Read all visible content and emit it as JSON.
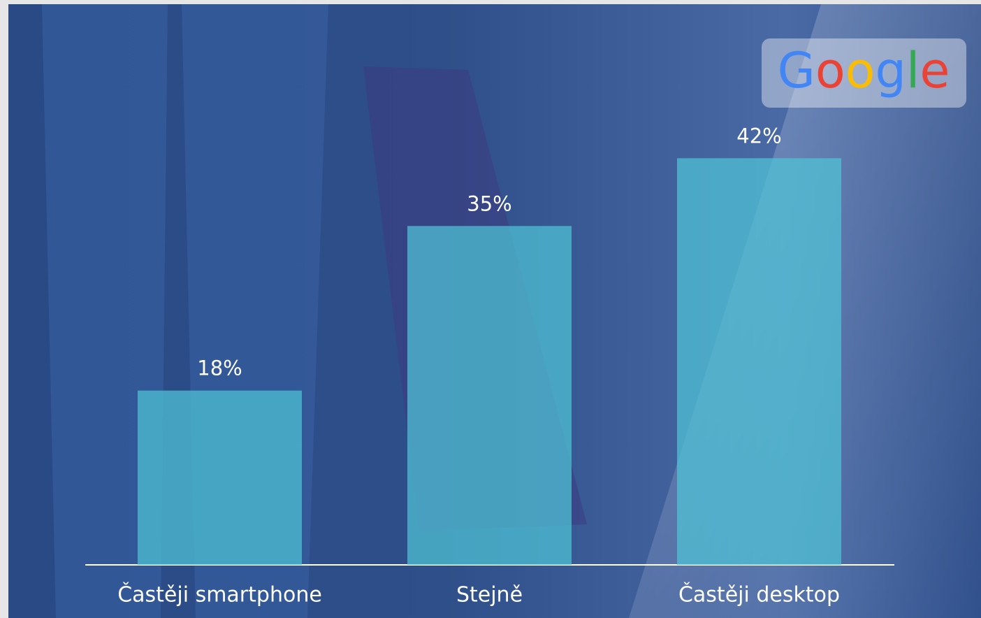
{
  "brand": "Google",
  "chart_data": {
    "type": "bar",
    "categories": [
      "Častěji smartphone",
      "Stejně",
      "Častěji desktop"
    ],
    "values": [
      18,
      35,
      42
    ],
    "value_labels": [
      "18%",
      "35%",
      "42%"
    ],
    "color": "#4fc3d6"
  }
}
